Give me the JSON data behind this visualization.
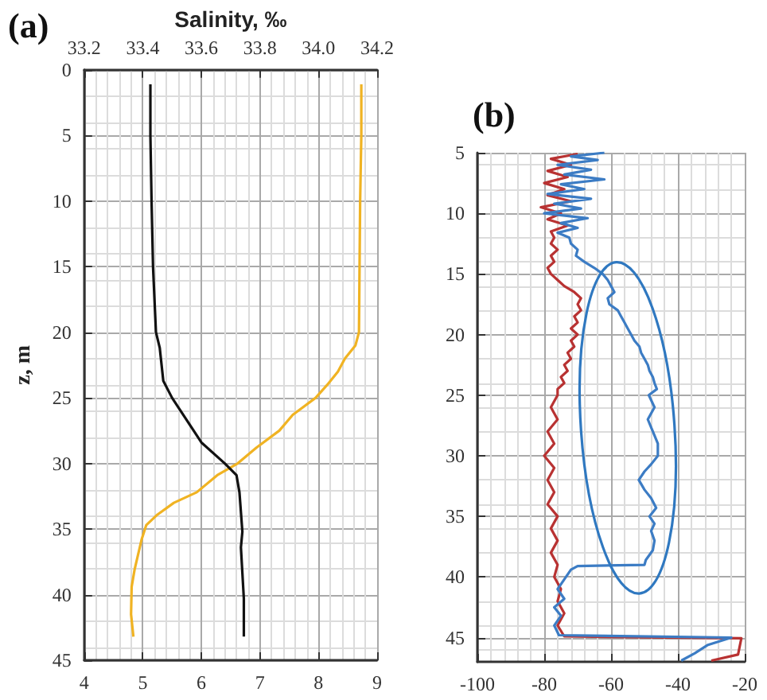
{
  "chart_data": [
    {
      "type": "line",
      "title": "(a)",
      "x2label": "Salinity, ‰",
      "ylabel": "z, m",
      "xlim": [
        4,
        9
      ],
      "xticks": [
        4,
        5,
        6,
        7,
        8,
        9
      ],
      "x2lim": [
        33.2,
        34.2
      ],
      "x2ticks": [
        {
          "value": 33.2,
          "label": "33.2"
        },
        {
          "value": 33.4,
          "label": "33.4"
        },
        {
          "value": 33.6,
          "label": "33.6"
        },
        {
          "value": 33.8,
          "label": "33.8"
        },
        {
          "value": 34.0,
          "label": "34.0"
        },
        {
          "value": 34.2,
          "label": "34.2"
        }
      ],
      "ylim": [
        45,
        0
      ],
      "yticks": [
        0,
        5,
        10,
        15,
        20,
        25,
        30,
        35,
        40,
        45
      ],
      "grid": true,
      "series": [
        {
          "color": "#f0b323",
          "x": [
            8.73,
            8.73,
            8.71,
            8.7,
            8.69,
            8.63,
            8.45,
            8.33,
            8.15,
            7.95,
            7.56,
            7.33,
            6.94,
            6.62,
            6.27,
            5.92,
            5.53,
            5.25,
            5.06,
            4.98,
            4.86,
            4.81,
            4.8,
            4.84
          ],
          "values": [
            1.1,
            5,
            10,
            15,
            20,
            21,
            22,
            23,
            24,
            25,
            26.3,
            27.5,
            28.8,
            30,
            30.9,
            32.2,
            33,
            33.9,
            34.7,
            35.8,
            38.1,
            39.4,
            41.5,
            43.2
          ]
        },
        {
          "color": "#111111",
          "axis": "x2",
          "x": [
            33.426,
            33.426,
            33.43,
            33.435,
            33.445,
            33.458,
            33.47,
            33.5,
            33.55,
            33.6,
            33.68,
            33.72,
            33.73,
            33.74,
            33.735,
            33.745,
            33.745
          ],
          "values": [
            1.1,
            5,
            10,
            15,
            20,
            21.2,
            23.7,
            25,
            26.7,
            28.4,
            30,
            30.9,
            32.2,
            35.2,
            36.4,
            40.3,
            43.2
          ]
        }
      ]
    },
    {
      "type": "line",
      "title": "(b)",
      "xlim": [
        -100,
        -20
      ],
      "xticks": [
        -100,
        -80,
        -60,
        -40,
        -20
      ],
      "ylim": [
        47,
        5
      ],
      "yticks": [
        5,
        10,
        15,
        20,
        25,
        30,
        35,
        40,
        45
      ],
      "grid": true,
      "series": [
        {
          "color": "#b83232",
          "x": [
            -70,
            -78,
            -72,
            -79,
            -73,
            -80,
            -74,
            -79,
            -72,
            -81,
            -75,
            -79,
            -73,
            -78,
            -77,
            -78,
            -76,
            -78,
            -77,
            -79,
            -78,
            -76,
            -74,
            -71,
            -69,
            -70,
            -69,
            -71,
            -70,
            -72,
            -70,
            -72,
            -71,
            -73,
            -72,
            -74,
            -73,
            -75,
            -74,
            -76,
            -76,
            -78,
            -76,
            -79,
            -77,
            -80,
            -77,
            -79,
            -77,
            -79,
            -76,
            -78,
            -76,
            -78,
            -76,
            -77,
            -75,
            -76,
            -74,
            -76,
            -74,
            -21,
            -22,
            -30
          ],
          "values": [
            5.1,
            5.5,
            6,
            6.5,
            7,
            7.5,
            8,
            8.5,
            9,
            9.5,
            10,
            10.5,
            11,
            11.5,
            12,
            12.5,
            13,
            13.5,
            14,
            14.5,
            15,
            15.5,
            16,
            16.5,
            17,
            17.5,
            18,
            18.5,
            19,
            19.5,
            20,
            20.5,
            21,
            21.5,
            22,
            22.5,
            23,
            23.5,
            24,
            24.5,
            25,
            26,
            27,
            28,
            29,
            30,
            31,
            32,
            33,
            34,
            35,
            36,
            37,
            38,
            39,
            40,
            41,
            42,
            43,
            44,
            44.9,
            45.05,
            46.4,
            46.9
          ]
        },
        {
          "color": "#3c7cc4",
          "x": [
            -62,
            -72,
            -64,
            -76,
            -66,
            -74,
            -62,
            -75,
            -68,
            -79,
            -66,
            -77,
            -69,
            -80,
            -67,
            -75,
            -70,
            -76,
            -72.5,
            -72,
            -70,
            -70.5,
            -68,
            -65,
            -62.5,
            -61,
            -60,
            -59,
            -61,
            -60.5,
            -58,
            -57,
            -56,
            -55,
            -54,
            -53,
            -51.5,
            -51,
            -50,
            -49,
            -48.5,
            -47.5,
            -47,
            -46.3,
            -48.7,
            -47,
            -49,
            -47.5,
            -46,
            -46,
            -48,
            -50,
            -51.7,
            -50,
            -48,
            -46.5,
            -48.5,
            -47,
            -48,
            -47,
            -47.5,
            -49.6,
            -50,
            -70,
            -72,
            -74,
            -76,
            -74,
            -77,
            -75,
            -77,
            -75.6,
            -24,
            -31,
            -35,
            -39
          ],
          "values": [
            5,
            5.3,
            5.6,
            6,
            6.4,
            6.8,
            7.2,
            7.6,
            8,
            8.4,
            8.8,
            9.2,
            9.6,
            10,
            10.4,
            10.8,
            11.2,
            11.6,
            12,
            12.5,
            13,
            13.5,
            14,
            14.5,
            15,
            15.5,
            16,
            16.5,
            17,
            17.5,
            18,
            18.5,
            19,
            19.5,
            20,
            20.5,
            21,
            21.5,
            22,
            22.5,
            23,
            23.5,
            24,
            24.5,
            25,
            26,
            27,
            28,
            29,
            30,
            30.7,
            31.3,
            32,
            32.8,
            33.5,
            34.3,
            35,
            35.6,
            36.2,
            37,
            37.8,
            38.6,
            39,
            39.1,
            39.4,
            40.2,
            41,
            41.8,
            42.5,
            43.2,
            44,
            44.8,
            45,
            45.6,
            46.3,
            46.9
          ]
        }
      ]
    }
  ]
}
